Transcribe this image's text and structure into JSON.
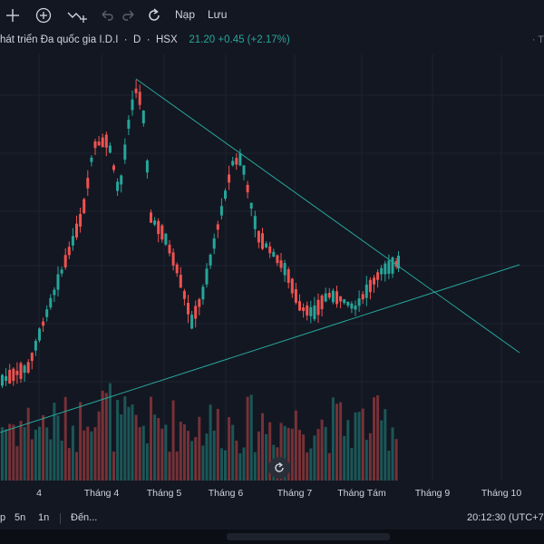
{
  "toolbar": {
    "icons": [
      "crosshair-icon",
      "plus-circle-icon",
      "indicator-icon",
      "undo-icon",
      "redo-icon",
      "reload-icon"
    ],
    "load_label": "Nạp",
    "save_label": "Lưu"
  },
  "legend": {
    "name": "hát triển Đa quốc gia I.D.I",
    "interval": "D",
    "exchange": "HSX",
    "price": "21.20",
    "change": "+0.45 (+2.17%)",
    "more": "T"
  },
  "xaxis": {
    "labels": [
      "4",
      "Tháng 4",
      "Tháng 5",
      "Tháng 6",
      "Tháng 7",
      "Tháng Tám",
      "Tháng 9",
      "Tháng 10"
    ]
  },
  "bottom": {
    "ranges": [
      "p",
      "5n",
      "1n"
    ],
    "goto_label": "Đến...",
    "time": "20:12:30 (UTC+7"
  },
  "colors": {
    "up": "#26a69a",
    "down": "#ef5350",
    "background": "#131722",
    "trendline": "#26a69a"
  },
  "chart_data": {
    "type": "candlestick",
    "interval": "D",
    "last_price": 21.2,
    "series": [
      {
        "name": "price",
        "note": "synthetic path estimated from visual shape"
      },
      {
        "name": "volume"
      }
    ]
  }
}
